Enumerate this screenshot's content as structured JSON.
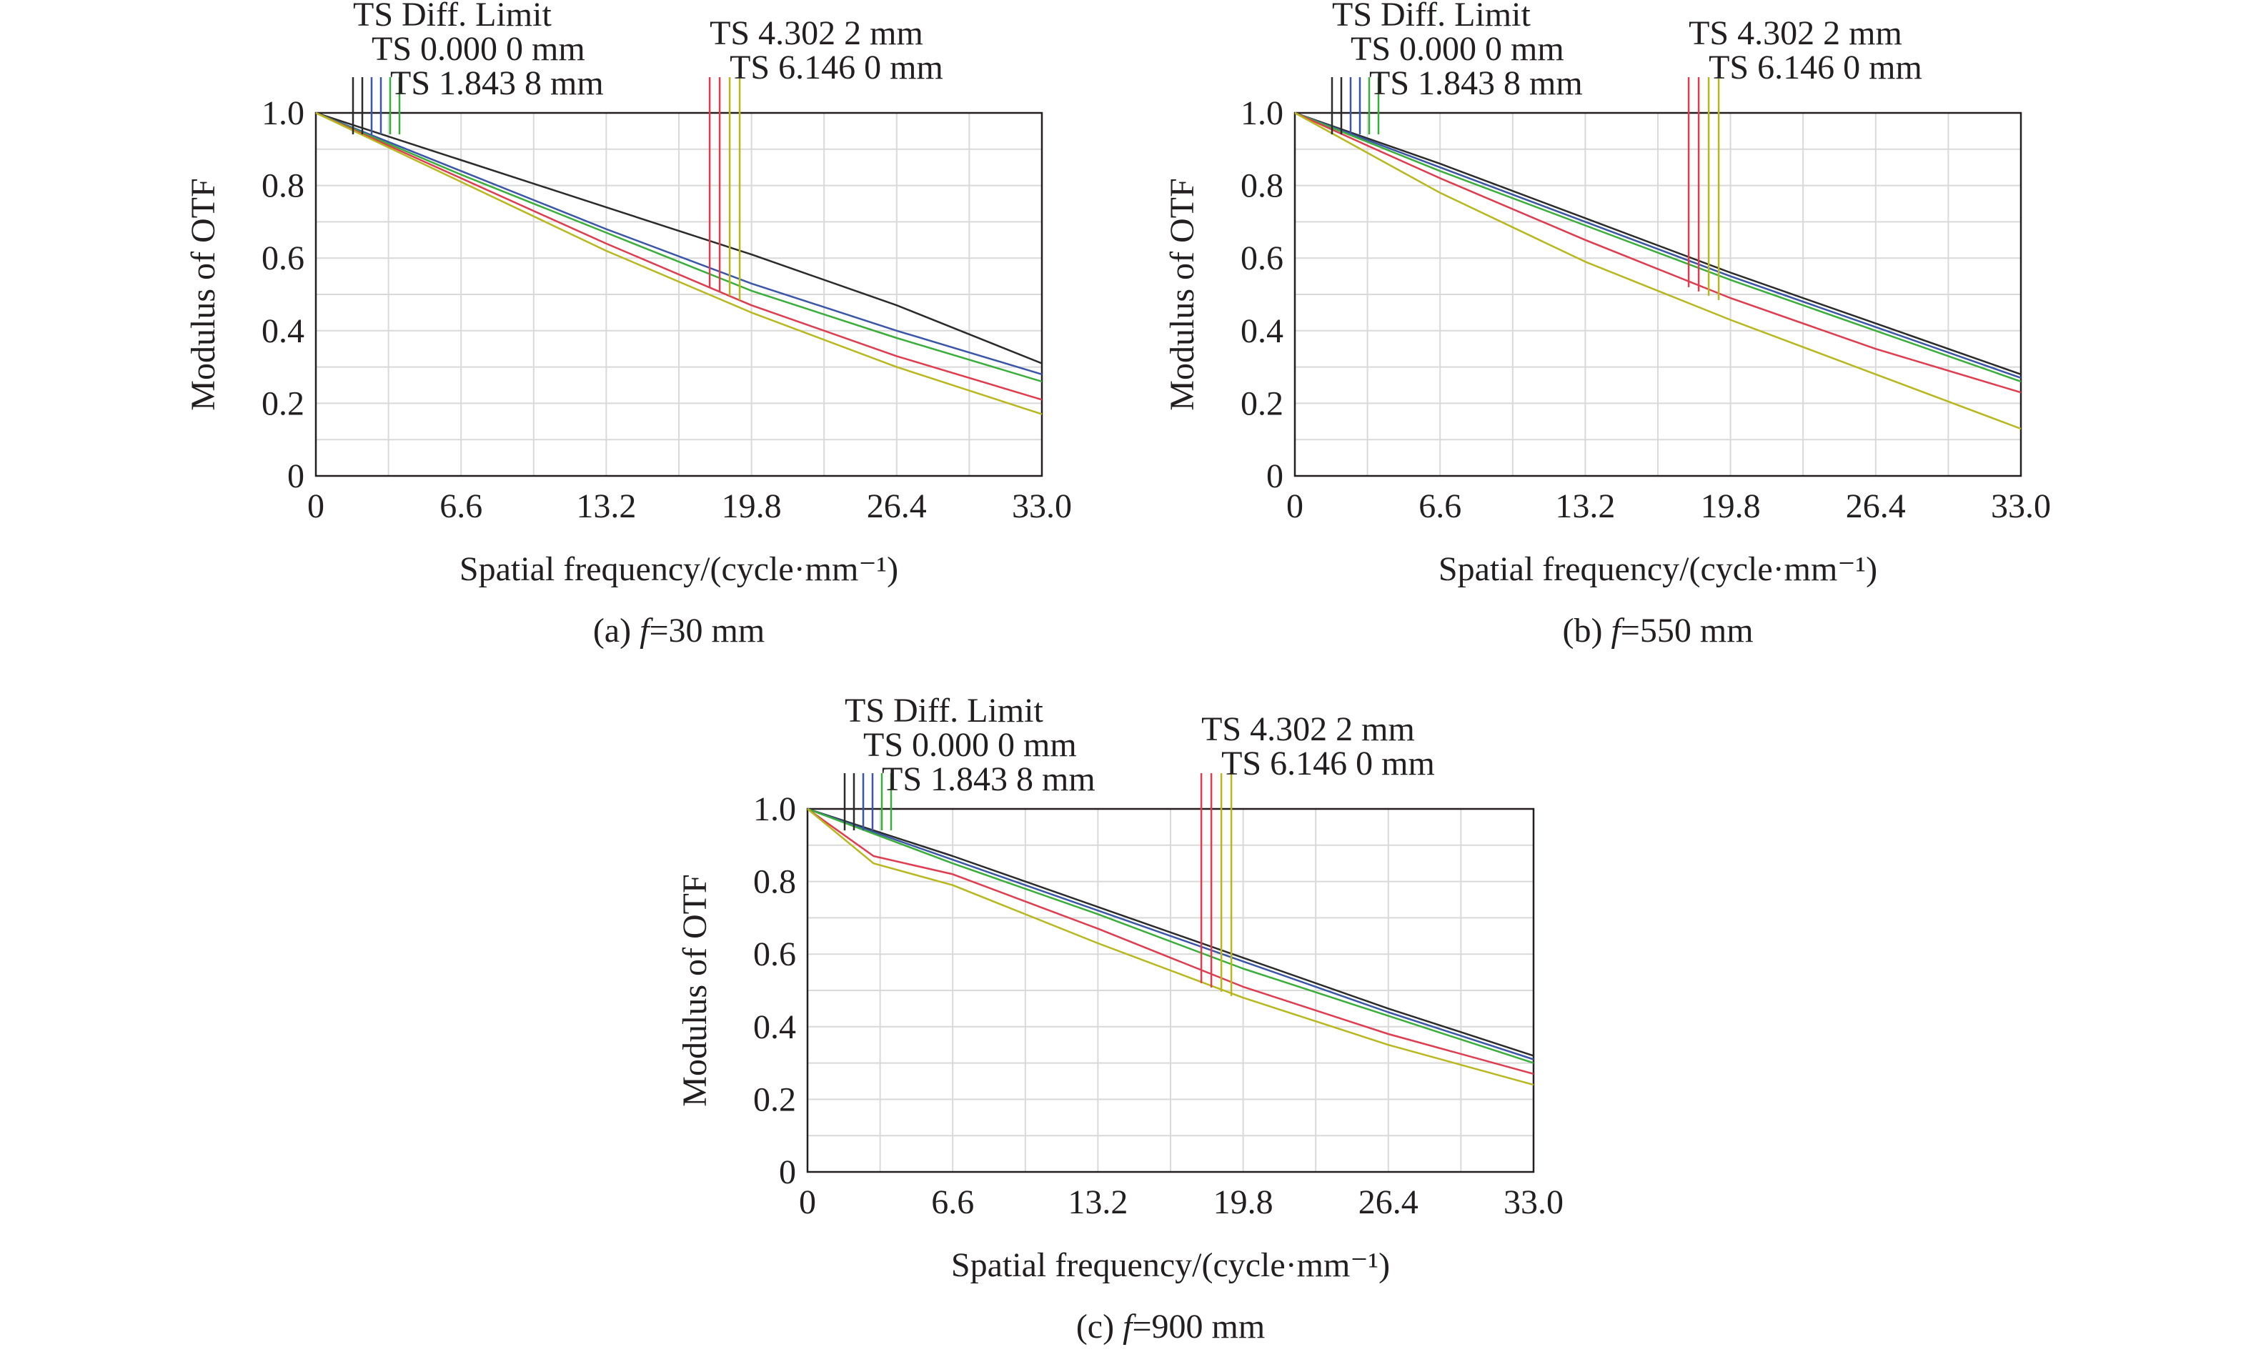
{
  "figure": {
    "xlabel": "Spatial frequency/(cycle·mm⁻¹)",
    "ylabel": "Modulus of OTF",
    "ylim": [
      0,
      1.0
    ],
    "xlim": [
      0,
      33.0
    ],
    "xticks": [
      "0",
      "6.6",
      "13.2",
      "19.8",
      "26.4",
      "33.0"
    ],
    "yticks": [
      "0",
      "0.2",
      "0.4",
      "0.6",
      "0.8",
      "1.0"
    ]
  },
  "legend_labels": [
    "TS Diff. Limit",
    "TS 0.000 0 mm",
    "TS 1.843 8 mm",
    "TS 4.302 2 mm",
    "TS 6.146 0 mm"
  ],
  "colors": {
    "diff_limit": "#2b2b2b",
    "field_0": "#3b56a8",
    "field_1843": "#3aae3a",
    "field_4302": "#e03c50",
    "field_6146": "#b8b81e",
    "axis": "#231f20",
    "grid": "#d9d9d9"
  },
  "chart_data": [
    {
      "type": "line",
      "caption_prefix": "(a) ",
      "caption_f": "f",
      "caption_rest": "=30 mm",
      "xlabel": "Spatial frequency/(cycle·mm⁻¹)",
      "ylabel": "Modulus of OTF",
      "xlim": [
        0,
        33.0
      ],
      "ylim": [
        0,
        1.0
      ],
      "series": [
        {
          "name": "TS Diff. Limit",
          "color": "#2b2b2b",
          "x": [
            0,
            6.6,
            13.2,
            19.8,
            26.4,
            33.0
          ],
          "y": [
            1.0,
            0.87,
            0.74,
            0.61,
            0.47,
            0.31
          ]
        },
        {
          "name": "TS 0.000 0 mm",
          "color": "#3b56a8",
          "x": [
            0,
            6.6,
            13.2,
            19.8,
            26.4,
            33.0
          ],
          "y": [
            1.0,
            0.84,
            0.68,
            0.53,
            0.4,
            0.28
          ]
        },
        {
          "name": "TS 1.843 8 mm",
          "color": "#3aae3a",
          "x": [
            0,
            6.6,
            13.2,
            19.8,
            26.4,
            33.0
          ],
          "y": [
            1.0,
            0.83,
            0.67,
            0.51,
            0.38,
            0.26
          ]
        },
        {
          "name": "TS 4.302 2 mm",
          "color": "#e03c50",
          "x": [
            0,
            6.6,
            13.2,
            19.8,
            26.4,
            33.0
          ],
          "y": [
            1.0,
            0.82,
            0.64,
            0.47,
            0.33,
            0.21
          ]
        },
        {
          "name": "TS 6.146 0 mm",
          "color": "#b8b81e",
          "x": [
            0,
            6.6,
            13.2,
            19.8,
            26.4,
            33.0
          ],
          "y": [
            1.0,
            0.81,
            0.62,
            0.45,
            0.3,
            0.17
          ]
        }
      ]
    },
    {
      "type": "line",
      "caption_prefix": "(b) ",
      "caption_f": "f",
      "caption_rest": "=550 mm",
      "xlabel": "Spatial frequency/(cycle·mm⁻¹)",
      "ylabel": "Modulus of OTF",
      "xlim": [
        0,
        33.0
      ],
      "ylim": [
        0,
        1.0
      ],
      "series": [
        {
          "name": "TS Diff. Limit",
          "color": "#2b2b2b",
          "x": [
            0,
            6.6,
            13.2,
            19.8,
            26.4,
            33.0
          ],
          "y": [
            1.0,
            0.86,
            0.71,
            0.56,
            0.42,
            0.28
          ]
        },
        {
          "name": "TS 0.000 0 mm",
          "color": "#3b56a8",
          "x": [
            0,
            6.6,
            13.2,
            19.8,
            26.4,
            33.0
          ],
          "y": [
            1.0,
            0.85,
            0.7,
            0.55,
            0.41,
            0.27
          ]
        },
        {
          "name": "TS 1.843 8 mm",
          "color": "#3aae3a",
          "x": [
            0,
            6.6,
            13.2,
            19.8,
            26.4,
            33.0
          ],
          "y": [
            1.0,
            0.84,
            0.69,
            0.54,
            0.4,
            0.26
          ]
        },
        {
          "name": "TS 4.302 2 mm",
          "color": "#e03c50",
          "x": [
            0,
            6.6,
            13.2,
            19.8,
            26.4,
            33.0
          ],
          "y": [
            1.0,
            0.82,
            0.65,
            0.49,
            0.35,
            0.23
          ]
        },
        {
          "name": "TS 6.146 0 mm",
          "color": "#b8b81e",
          "x": [
            0,
            6.6,
            13.2,
            19.8,
            26.4,
            33.0
          ],
          "y": [
            1.0,
            0.78,
            0.59,
            0.43,
            0.28,
            0.13
          ]
        }
      ]
    },
    {
      "type": "line",
      "caption_prefix": "(c) ",
      "caption_f": "f",
      "caption_rest": "=900 mm",
      "xlabel": "Spatial frequency/(cycle·mm⁻¹)",
      "ylabel": "Modulus of OTF",
      "xlim": [
        0,
        33.0
      ],
      "ylim": [
        0,
        1.0
      ],
      "series": [
        {
          "name": "TS Diff. Limit",
          "color": "#2b2b2b",
          "x": [
            0,
            6.6,
            13.2,
            19.8,
            26.4,
            33.0
          ],
          "y": [
            1.0,
            0.87,
            0.73,
            0.59,
            0.45,
            0.32
          ]
        },
        {
          "name": "TS 0.000 0 mm",
          "color": "#3b56a8",
          "x": [
            0,
            6.6,
            13.2,
            19.8,
            26.4,
            33.0
          ],
          "y": [
            1.0,
            0.86,
            0.72,
            0.58,
            0.44,
            0.31
          ]
        },
        {
          "name": "TS 1.843 8 mm",
          "color": "#3aae3a",
          "x": [
            0,
            6.6,
            13.2,
            19.8,
            26.4,
            33.0
          ],
          "y": [
            1.0,
            0.85,
            0.71,
            0.56,
            0.43,
            0.3
          ]
        },
        {
          "name": "TS 4.302 2 mm",
          "color": "#e03c50",
          "x": [
            0,
            3.0,
            6.6,
            13.2,
            19.8,
            26.4,
            33.0
          ],
          "y": [
            1.0,
            0.87,
            0.82,
            0.67,
            0.51,
            0.38,
            0.27
          ]
        },
        {
          "name": "TS 6.146 0 mm",
          "color": "#b8b81e",
          "x": [
            0,
            3.0,
            6.6,
            13.2,
            19.8,
            26.4,
            33.0
          ],
          "y": [
            1.0,
            0.85,
            0.79,
            0.63,
            0.48,
            0.35,
            0.24
          ]
        }
      ]
    }
  ]
}
